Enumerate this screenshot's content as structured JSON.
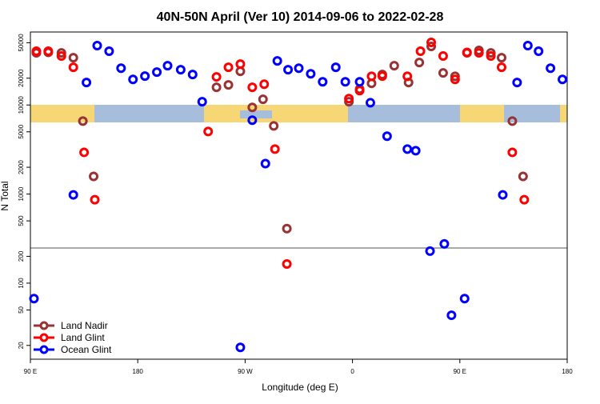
{
  "chart_data": {
    "type": "scatter",
    "title": "40N-50N April (Ver 10)   2014-09-06 to 2022-02-28",
    "x_label": "Longitude (deg E)",
    "y_label": "N Total",
    "log_y": true,
    "legend_position": "lower left",
    "xlim": [
      90,
      540
    ],
    "xticks": [
      {
        "value": 90,
        "label": "90 E"
      },
      {
        "value": 180,
        "label": "180"
      },
      {
        "value": 270,
        "label": "90 W"
      },
      {
        "value": 360,
        "label": "0"
      },
      {
        "value": 450,
        "label": "90 E"
      },
      {
        "value": 540,
        "label": "180"
      }
    ],
    "ylim": [
      14,
      66000
    ],
    "yticks": [
      20,
      50,
      100,
      200,
      500,
      1000,
      2000,
      5000,
      10000,
      20000,
      50000
    ],
    "series": [
      {
        "name": "Land Nadir",
        "color": "#993333",
        "x": [
          95,
          105,
          116,
          126,
          134,
          143,
          246,
          256,
          266,
          276,
          285,
          294,
          305,
          357,
          366,
          376,
          385,
          395,
          407,
          416,
          426,
          436,
          446,
          456,
          466,
          476,
          485,
          494,
          503
        ],
        "values": [
          38500,
          39000,
          38500,
          34000,
          6600,
          1580,
          15800,
          16800,
          23900,
          9400,
          11600,
          5830,
          410,
          10900,
          15100,
          17500,
          22000,
          27600,
          17900,
          30000,
          45500,
          22900,
          21000,
          38500,
          41000,
          38500,
          34000,
          6600,
          1580
        ]
      },
      {
        "name": "Land Glint",
        "color": "#ff0000",
        "x": [
          95,
          105,
          116,
          126,
          135,
          144,
          239,
          246,
          256,
          266,
          276,
          286,
          295,
          305,
          357,
          366,
          376,
          385,
          406,
          417,
          426,
          436,
          446,
          456,
          466,
          476,
          485,
          494,
          504
        ],
        "values": [
          40200,
          40200,
          35500,
          26500,
          2940,
          865,
          5040,
          20700,
          26500,
          28800,
          15800,
          17100,
          3200,
          164,
          11800,
          14500,
          21000,
          21100,
          21000,
          40200,
          50400,
          35500,
          19400,
          39000,
          38500,
          35500,
          26500,
          2940,
          865
        ]
      },
      {
        "name": "Ocean Glint",
        "color": "#0000ff",
        "x": [
          93,
          126,
          137,
          146,
          156,
          166,
          176,
          186,
          196,
          205,
          216,
          226,
          234,
          266,
          276,
          287,
          297,
          306,
          315,
          325,
          335,
          346,
          354,
          366,
          375,
          389,
          406,
          413,
          425,
          437,
          443,
          454,
          486,
          498,
          507,
          516,
          526,
          536
        ],
        "values": [
          67,
          980,
          17900,
          46400,
          40200,
          25900,
          19400,
          21100,
          23400,
          27600,
          24900,
          22000,
          10900,
          19,
          6750,
          2200,
          31300,
          24900,
          25900,
          22400,
          18200,
          26500,
          18200,
          18200,
          10600,
          4460,
          3200,
          3070,
          229,
          276,
          43.6,
          67,
          980,
          17900,
          46400,
          40200,
          25900,
          19400
        ]
      }
    ]
  }
}
